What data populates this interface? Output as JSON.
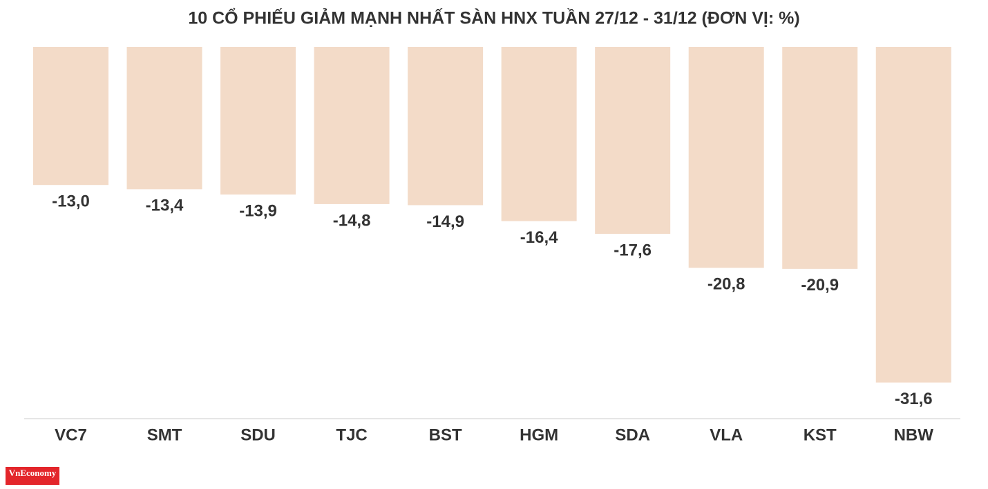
{
  "chart_data": {
    "type": "bar",
    "title": "10 CỔ PHIẾU GIẢM MẠNH NHẤT SÀN HNX TUẦN 27/12 - 31/12 (ĐƠN VỊ: %)",
    "categories": [
      "VC7",
      "SMT",
      "SDU",
      "TJC",
      "BST",
      "HGM",
      "SDA",
      "VLA",
      "KST",
      "NBW"
    ],
    "values": [
      -13.0,
      -13.4,
      -13.9,
      -14.8,
      -14.9,
      -16.4,
      -17.6,
      -20.8,
      -20.9,
      -31.6
    ],
    "value_labels": [
      "-13,0",
      "-13,4",
      "-13,9",
      "-14,8",
      "-14,9",
      "-16,4",
      "-17,6",
      "-20,8",
      "-20,9",
      "-31,6"
    ],
    "color": "#f3dbc8",
    "ylim": [
      -35,
      0
    ]
  },
  "branding": {
    "logo": "VnEconomy"
  }
}
